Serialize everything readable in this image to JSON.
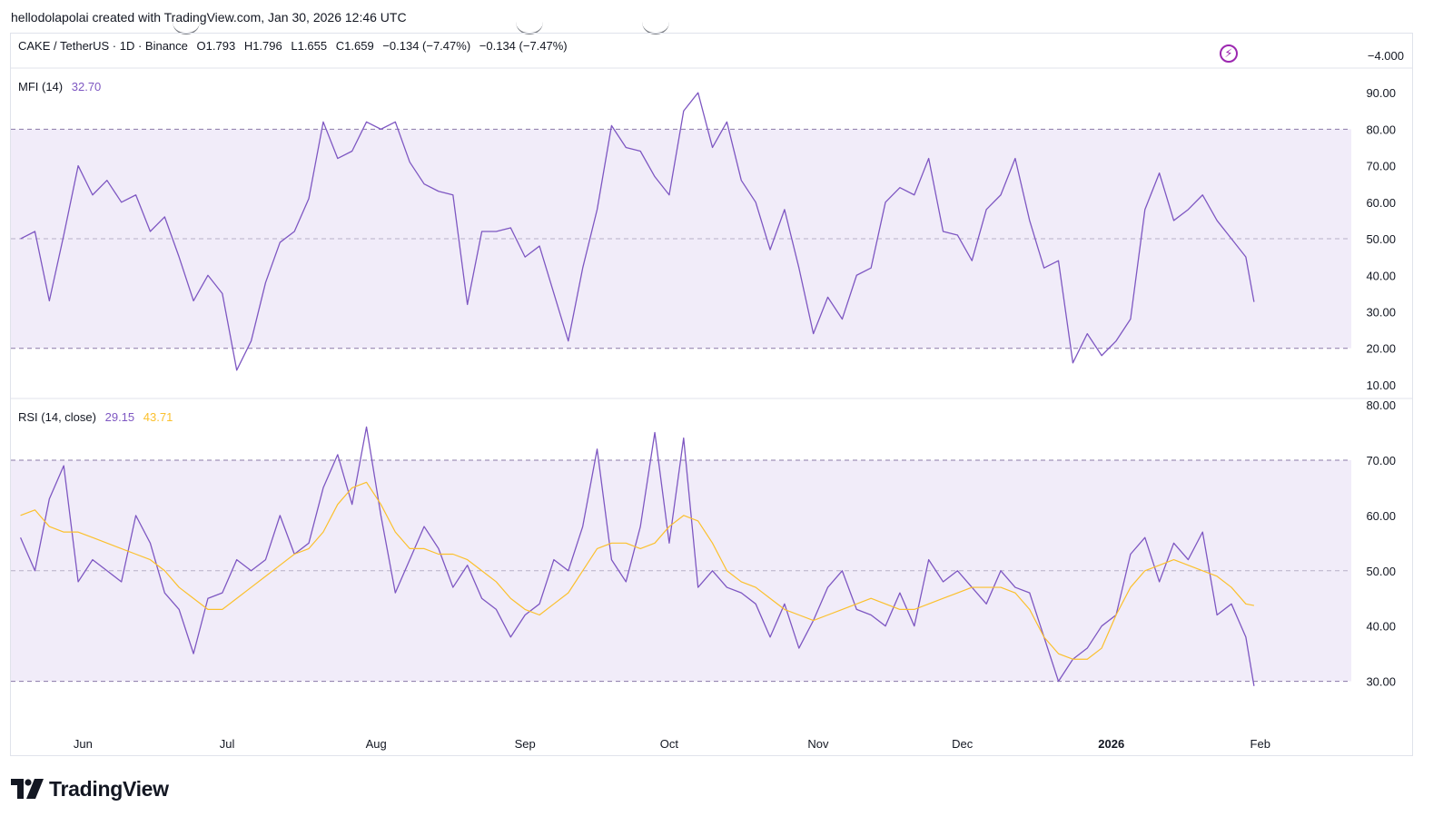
{
  "header": {
    "creator_text": "hellodolapolai created with TradingView.com, Jan 30, 2026 12:46 UTC"
  },
  "price_legend": {
    "symbol": "CAKE / TetherUS · 1D · Binance",
    "open": "O1.793",
    "high": "H1.796",
    "low": "L1.655",
    "close": "C1.659",
    "change": "−0.134 (−7.47%)",
    "change2": "−0.134 (−7.47%)",
    "axis_value": "−4.000"
  },
  "mfi_legend": {
    "label": "MFI (14)",
    "value": "32.70"
  },
  "rsi_legend": {
    "label": "RSI (14, close)",
    "value": "29.15",
    "ma_value": "43.71"
  },
  "brand": {
    "name": "TradingView"
  },
  "colors": {
    "mfi_line": "#7e57c2",
    "rsi_line": "#7e57c2",
    "rsi_ma_line": "#fbc02d",
    "band_fill": "#f1ecf9",
    "band_line": "#8a7aa8",
    "midline": "#b8b0c8"
  },
  "chart_data": [
    {
      "type": "line",
      "name": "MFI (14)",
      "ylim": [
        7,
        96
      ],
      "yticks": [
        "90.00",
        "80.00",
        "70.00",
        "60.00",
        "50.00",
        "40.00",
        "30.00",
        "20.00",
        "10.00"
      ],
      "ytick_values": [
        90,
        80,
        70,
        60,
        50,
        40,
        30,
        20,
        10
      ],
      "bands": {
        "upper": 80,
        "middle": 50,
        "lower": 20
      },
      "x": [
        "2025-05-19",
        "2025-05-22",
        "2025-05-25",
        "2025-05-28",
        "2025-05-31",
        "2025-06-03",
        "2025-06-06",
        "2025-06-09",
        "2025-06-12",
        "2025-06-15",
        "2025-06-18",
        "2025-06-21",
        "2025-06-24",
        "2025-06-27",
        "2025-06-30",
        "2025-07-03",
        "2025-07-06",
        "2025-07-09",
        "2025-07-12",
        "2025-07-15",
        "2025-07-18",
        "2025-07-21",
        "2025-07-24",
        "2025-07-27",
        "2025-07-30",
        "2025-08-02",
        "2025-08-05",
        "2025-08-08",
        "2025-08-11",
        "2025-08-14",
        "2025-08-17",
        "2025-08-20",
        "2025-08-23",
        "2025-08-26",
        "2025-08-29",
        "2025-09-01",
        "2025-09-04",
        "2025-09-07",
        "2025-09-10",
        "2025-09-13",
        "2025-09-16",
        "2025-09-19",
        "2025-09-22",
        "2025-09-25",
        "2025-09-28",
        "2025-10-01",
        "2025-10-04",
        "2025-10-07",
        "2025-10-10",
        "2025-10-13",
        "2025-10-16",
        "2025-10-19",
        "2025-10-22",
        "2025-10-25",
        "2025-10-28",
        "2025-10-31",
        "2025-11-03",
        "2025-11-06",
        "2025-11-09",
        "2025-11-12",
        "2025-11-15",
        "2025-11-18",
        "2025-11-21",
        "2025-11-24",
        "2025-11-27",
        "2025-11-30",
        "2025-12-03",
        "2025-12-06",
        "2025-12-09",
        "2025-12-12",
        "2025-12-15",
        "2025-12-18",
        "2025-12-21",
        "2025-12-24",
        "2025-12-27",
        "2025-12-30",
        "2026-01-02",
        "2026-01-05",
        "2026-01-08",
        "2026-01-11",
        "2026-01-14",
        "2026-01-17",
        "2026-01-20",
        "2026-01-23",
        "2026-01-26",
        "2026-01-29"
      ],
      "values": [
        50,
        52,
        33,
        51,
        70,
        62,
        66,
        60,
        62,
        52,
        56,
        45,
        33,
        40,
        35,
        14,
        22,
        38,
        49,
        52,
        61,
        82,
        72,
        74,
        82,
        80,
        82,
        71,
        65,
        63,
        62,
        32,
        52,
        52,
        53,
        45,
        48,
        35,
        22,
        42,
        58,
        81,
        75,
        74,
        67,
        62,
        85,
        90,
        75,
        82,
        66,
        60,
        47,
        58,
        42,
        24,
        34,
        28,
        40,
        42,
        60,
        64,
        62,
        72,
        52,
        51,
        44,
        58,
        62,
        72,
        55,
        42,
        44,
        16,
        24,
        18,
        22,
        28,
        58,
        68,
        55,
        58,
        62,
        55,
        50,
        45
      ],
      "last_value": 32.7
    },
    {
      "type": "line",
      "name": "RSI (14, close)",
      "ylim": [
        25.5,
        80.5
      ],
      "yticks": [
        "80.00",
        "70.00",
        "60.00",
        "50.00",
        "40.00",
        "30.00"
      ],
      "ytick_values": [
        80,
        70,
        60,
        50,
        40,
        30
      ],
      "bands": {
        "upper": 70,
        "middle": 50,
        "lower": 30
      },
      "x": [
        "2025-05-19",
        "2025-05-22",
        "2025-05-25",
        "2025-05-28",
        "2025-05-31",
        "2025-06-03",
        "2025-06-06",
        "2025-06-09",
        "2025-06-12",
        "2025-06-15",
        "2025-06-18",
        "2025-06-21",
        "2025-06-24",
        "2025-06-27",
        "2025-06-30",
        "2025-07-03",
        "2025-07-06",
        "2025-07-09",
        "2025-07-12",
        "2025-07-15",
        "2025-07-18",
        "2025-07-21",
        "2025-07-24",
        "2025-07-27",
        "2025-07-30",
        "2025-08-02",
        "2025-08-05",
        "2025-08-08",
        "2025-08-11",
        "2025-08-14",
        "2025-08-17",
        "2025-08-20",
        "2025-08-23",
        "2025-08-26",
        "2025-08-29",
        "2025-09-01",
        "2025-09-04",
        "2025-09-07",
        "2025-09-10",
        "2025-09-13",
        "2025-09-16",
        "2025-09-19",
        "2025-09-22",
        "2025-09-25",
        "2025-09-28",
        "2025-10-01",
        "2025-10-04",
        "2025-10-07",
        "2025-10-10",
        "2025-10-13",
        "2025-10-16",
        "2025-10-19",
        "2025-10-22",
        "2025-10-25",
        "2025-10-28",
        "2025-10-31",
        "2025-11-03",
        "2025-11-06",
        "2025-11-09",
        "2025-11-12",
        "2025-11-15",
        "2025-11-18",
        "2025-11-21",
        "2025-11-24",
        "2025-11-27",
        "2025-11-30",
        "2025-12-03",
        "2025-12-06",
        "2025-12-09",
        "2025-12-12",
        "2025-12-15",
        "2025-12-18",
        "2025-12-21",
        "2025-12-24",
        "2025-12-27",
        "2025-12-30",
        "2026-01-02",
        "2026-01-05",
        "2026-01-08",
        "2026-01-11",
        "2026-01-14",
        "2026-01-17",
        "2026-01-20",
        "2026-01-23",
        "2026-01-26",
        "2026-01-29"
      ],
      "values": [
        56,
        50,
        63,
        69,
        48,
        52,
        50,
        48,
        60,
        55,
        46,
        43,
        35,
        45,
        46,
        52,
        50,
        52,
        60,
        53,
        55,
        65,
        71,
        62,
        76,
        60,
        46,
        52,
        58,
        54,
        47,
        51,
        45,
        43,
        38,
        42,
        44,
        52,
        50,
        58,
        72,
        52,
        48,
        58,
        75,
        55,
        74,
        47,
        50,
        47,
        46,
        44,
        38,
        44,
        36,
        41,
        47,
        50,
        43,
        42,
        40,
        46,
        40,
        52,
        48,
        50,
        47,
        44,
        50,
        47,
        46,
        38,
        30,
        34,
        36,
        40,
        42,
        53,
        56,
        48,
        55,
        52,
        57,
        42,
        44,
        38
      ],
      "last_value": 29.15,
      "ma_name": "RSI-based MA",
      "ma_values": [
        60,
        61,
        58,
        57,
        57,
        56,
        55,
        54,
        53,
        52,
        50,
        47,
        45,
        43,
        43,
        45,
        47,
        49,
        51,
        53,
        54,
        57,
        62,
        65,
        66,
        62,
        57,
        54,
        54,
        53,
        53,
        52,
        50,
        48,
        45,
        43,
        42,
        44,
        46,
        50,
        54,
        55,
        55,
        54,
        55,
        58,
        60,
        59,
        55,
        50,
        48,
        47,
        45,
        43,
        42,
        41,
        42,
        43,
        44,
        45,
        44,
        43,
        43,
        44,
        45,
        46,
        47,
        47,
        47,
        46,
        43,
        38,
        35,
        34,
        34,
        36,
        42,
        47,
        50,
        51,
        52,
        51,
        50,
        49,
        47,
        44
      ],
      "last_ma_value": 43.71
    }
  ],
  "x_axis": {
    "labels": [
      "Jun",
      "Jul",
      "Aug",
      "Sep",
      "Oct",
      "Nov",
      "Dec",
      "2026",
      "Feb"
    ],
    "label_dates": [
      "2025-06-01",
      "2025-07-01",
      "2025-08-01",
      "2025-09-01",
      "2025-10-01",
      "2025-11-01",
      "2025-12-01",
      "2026-01-01",
      "2026-02-01"
    ],
    "bold": [
      "2026"
    ],
    "start_date": "2025-05-17",
    "end_date": "2026-03-15"
  }
}
